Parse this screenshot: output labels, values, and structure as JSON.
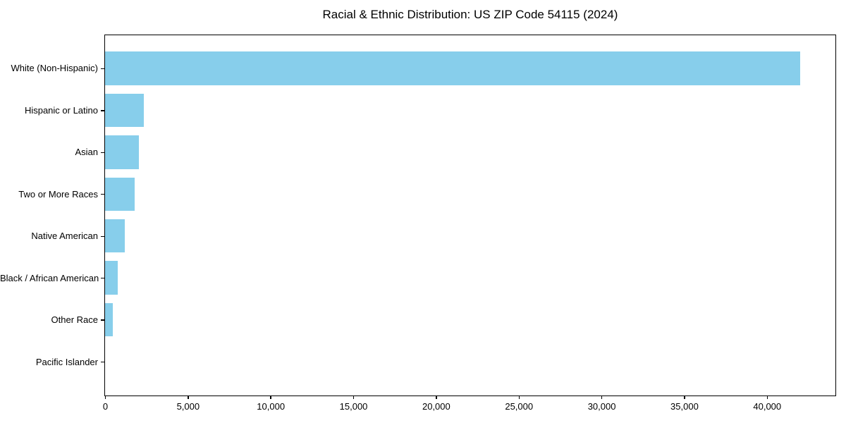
{
  "figure": {
    "background": "#ffffff"
  },
  "chart_data": {
    "type": "bar",
    "orientation": "horizontal",
    "title": "Racial & Ethnic Distribution: US ZIP Code 54115 (2024)",
    "categories": [
      "White (Non-Hispanic)",
      "Hispanic or Latino",
      "Asian",
      "Two or More Races",
      "Native American",
      "Black / African American",
      "Other Race",
      "Pacific Islander"
    ],
    "values": [
      42000,
      2350,
      2050,
      1800,
      1200,
      760,
      460,
      0
    ],
    "xlabel": "",
    "ylabel": "",
    "xlim": [
      0,
      44100
    ],
    "xticks": [
      0,
      5000,
      10000,
      15000,
      20000,
      25000,
      30000,
      35000,
      40000
    ],
    "xtick_labels": [
      "0",
      "5,000",
      "10,000",
      "15,000",
      "20,000",
      "25,000",
      "30,000",
      "35,000",
      "40,000"
    ],
    "bar_color": "#87CEEB",
    "axis_color": "#000000",
    "bar_height_fraction": 0.8,
    "grid": false,
    "legend": null
  }
}
